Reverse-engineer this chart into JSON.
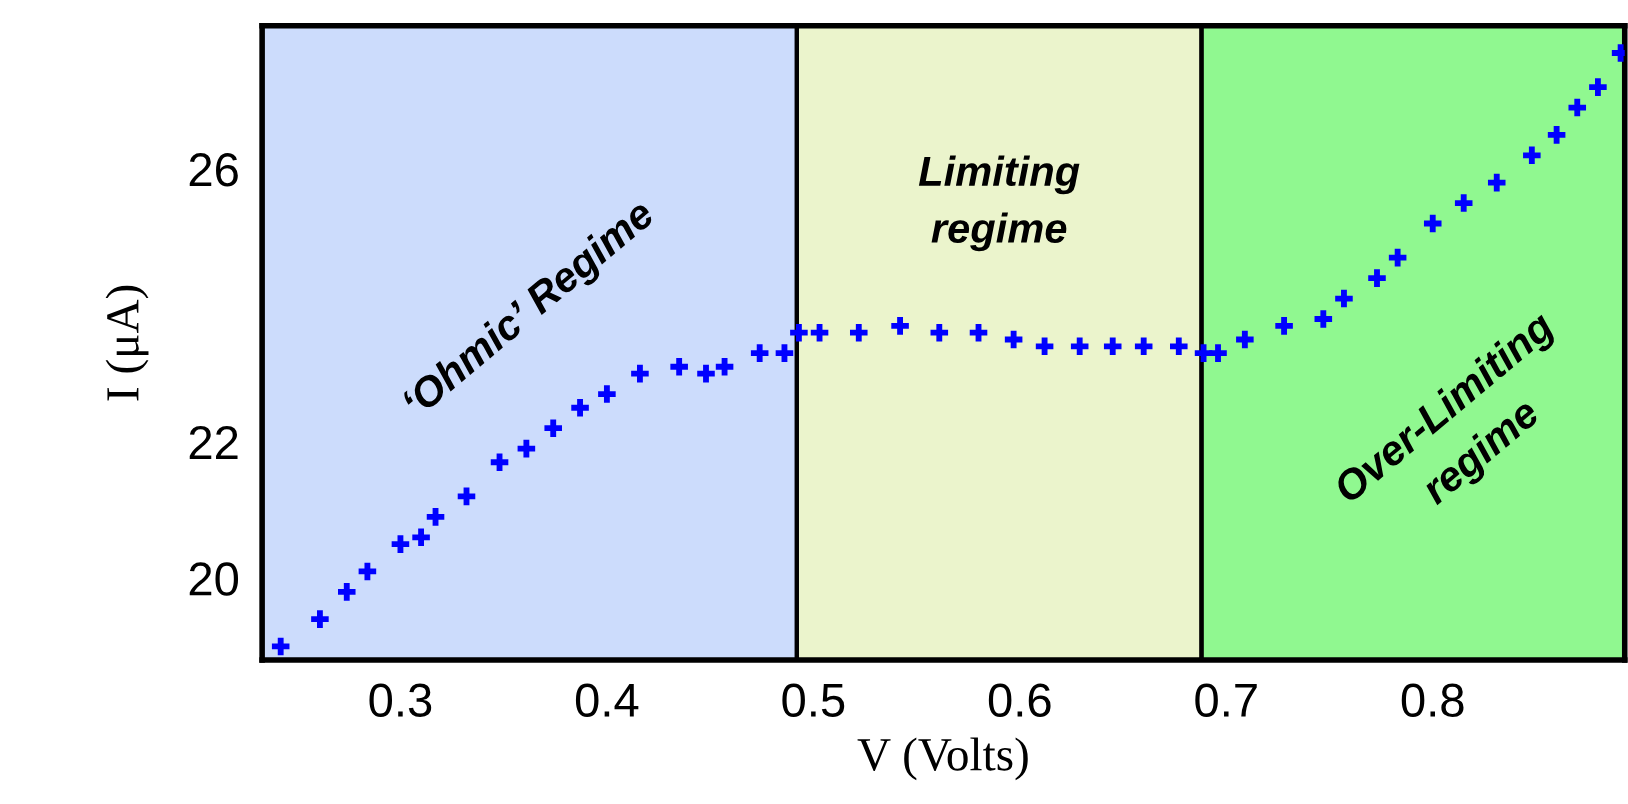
{
  "chart_data": {
    "type": "scatter",
    "xlabel": "V (Volts)",
    "ylabel": "I (μA)",
    "x": [
      0.242,
      0.261,
      0.274,
      0.284,
      0.3,
      0.31,
      0.317,
      0.332,
      0.348,
      0.361,
      0.374,
      0.387,
      0.4,
      0.416,
      0.435,
      0.448,
      0.457,
      0.474,
      0.486,
      0.493,
      0.503,
      0.522,
      0.542,
      0.561,
      0.58,
      0.597,
      0.612,
      0.629,
      0.645,
      0.66,
      0.677,
      0.689,
      0.696,
      0.709,
      0.728,
      0.747,
      0.757,
      0.773,
      0.783,
      0.8,
      0.815,
      0.831,
      0.848,
      0.86,
      0.87,
      0.88,
      0.891
    ],
    "series": [
      {
        "color": "#0000ff",
        "values": [
          19.0,
          19.4,
          19.8,
          20.1,
          20.5,
          20.6,
          20.9,
          21.2,
          21.7,
          21.9,
          22.2,
          22.5,
          22.7,
          23.0,
          23.1,
          23.0,
          23.1,
          23.3,
          23.3,
          23.6,
          23.6,
          23.6,
          23.7,
          23.6,
          23.6,
          23.5,
          23.4,
          23.4,
          23.4,
          23.4,
          23.4,
          23.3,
          23.3,
          23.5,
          23.7,
          23.8,
          24.1,
          24.4,
          24.7,
          25.2,
          25.5,
          25.8,
          26.2,
          26.5,
          26.9,
          27.2,
          27.7
        ]
      }
    ],
    "marker": "cross",
    "xlim": [
      0.233,
      0.893
    ],
    "ylim": [
      18.8,
      28.1
    ],
    "xticks": [
      0.3,
      0.4,
      0.5,
      0.6,
      0.7,
      0.8
    ],
    "yticks": [
      20,
      22,
      26
    ],
    "grid": false,
    "bands": [
      {
        "axis": "x",
        "from": 0.233,
        "to": 0.492,
        "label": "‘Ohmic’ Regime",
        "color": "#ccdcfc"
      },
      {
        "axis": "x",
        "from": 0.492,
        "to": 0.688,
        "label": "Limiting\nregime",
        "color": "#ebf4cc"
      },
      {
        "axis": "x",
        "from": 0.688,
        "to": 0.893,
        "label": "Over-Limiting\nregime",
        "color": "#90f890"
      }
    ]
  }
}
